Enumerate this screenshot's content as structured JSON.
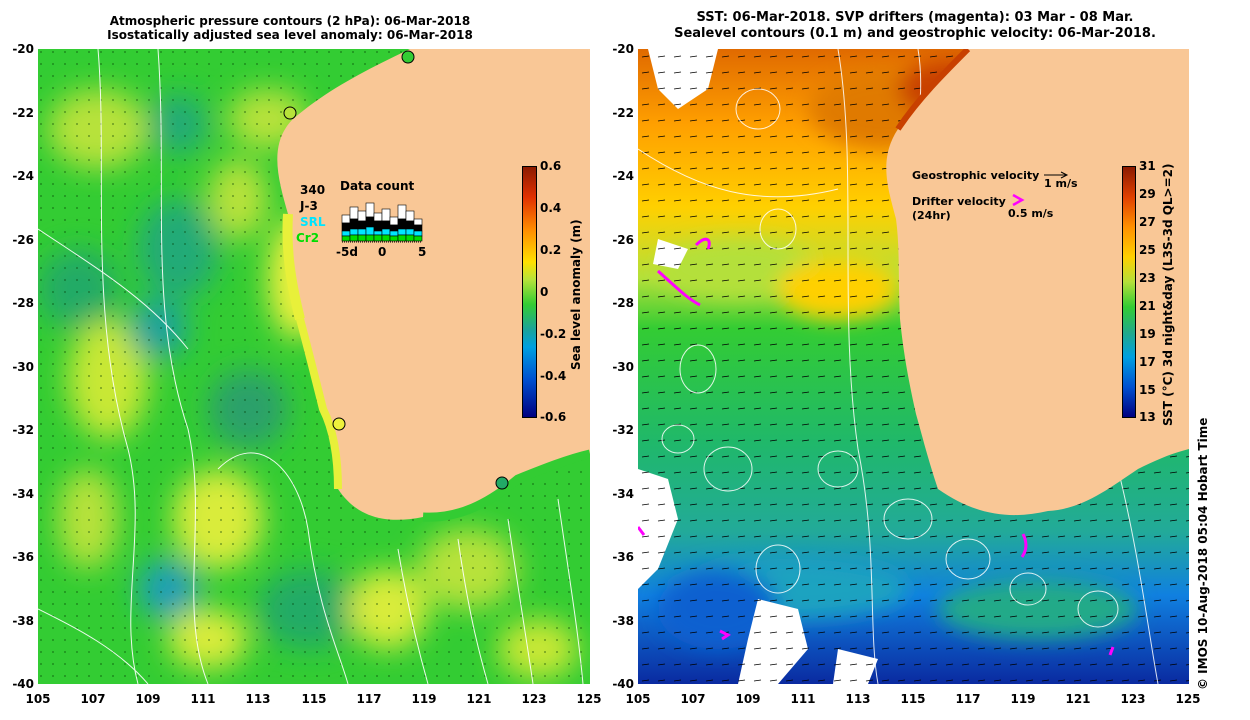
{
  "left_panel": {
    "title_line1": "Atmospheric pressure contours (2 hPa): 06-Mar-2018",
    "title_line2": "Isostatically adjusted sea level anomaly: 06-Mar-2018",
    "y_ticks": [
      "-20",
      "-22",
      "-24",
      "-26",
      "-28",
      "-30",
      "-32",
      "-34",
      "-36",
      "-38",
      "-40"
    ],
    "x_ticks": [
      "105",
      "107",
      "109",
      "111",
      "113",
      "115",
      "117",
      "119",
      "121",
      "123",
      "125"
    ],
    "colorbar": {
      "label": "Sea level anomaly (m)",
      "ticks": [
        "0.6",
        "0.4",
        "0.2",
        "0",
        "-0.2",
        "-0.4",
        "-0.6"
      ],
      "range": [
        -0.6,
        0.6
      ]
    },
    "data_count": {
      "title": "Data count",
      "satellites": [
        "340",
        "J-3",
        "SRL",
        "Cr2"
      ],
      "satellite_colors": [
        "#000000",
        "#000000",
        "#00e5ff",
        "#00dd00"
      ],
      "axis_ticks": [
        "-5d",
        "0",
        "5"
      ]
    }
  },
  "right_panel": {
    "title_line1": "SST: 06-Mar-2018. SVP drifters (magenta): 03 Mar - 08 Mar.",
    "title_line2": "Sealevel contours (0.1 m) and geostrophic velocity: 06-Mar-2018.",
    "y_ticks": [
      "-20",
      "-22",
      "-24",
      "-26",
      "-28",
      "-30",
      "-32",
      "-34",
      "-36",
      "-38",
      "-40"
    ],
    "x_ticks": [
      "105",
      "107",
      "109",
      "111",
      "113",
      "115",
      "117",
      "119",
      "121",
      "123",
      "125"
    ],
    "legend": {
      "geostrophic": "Geostrophic velocity",
      "geostrophic_scale": "1 m/s",
      "drifter": "Drifter velocity",
      "drifter_period": "(24hr)",
      "drifter_scale": "0.5 m/s"
    },
    "colorbar": {
      "label": "SST (°C) 3d night&day (L3S-3d QL>=2)",
      "ticks": [
        "31",
        "29",
        "27",
        "25",
        "23",
        "21",
        "19",
        "17",
        "15",
        "13"
      ],
      "range": [
        13,
        31
      ]
    }
  },
  "credit": "© IMOS 10-Aug-2018 05:04 Hobart Time",
  "colors": {
    "land": "#f9c796",
    "drifter": "#ff00ff",
    "contour": "#ffffff"
  }
}
